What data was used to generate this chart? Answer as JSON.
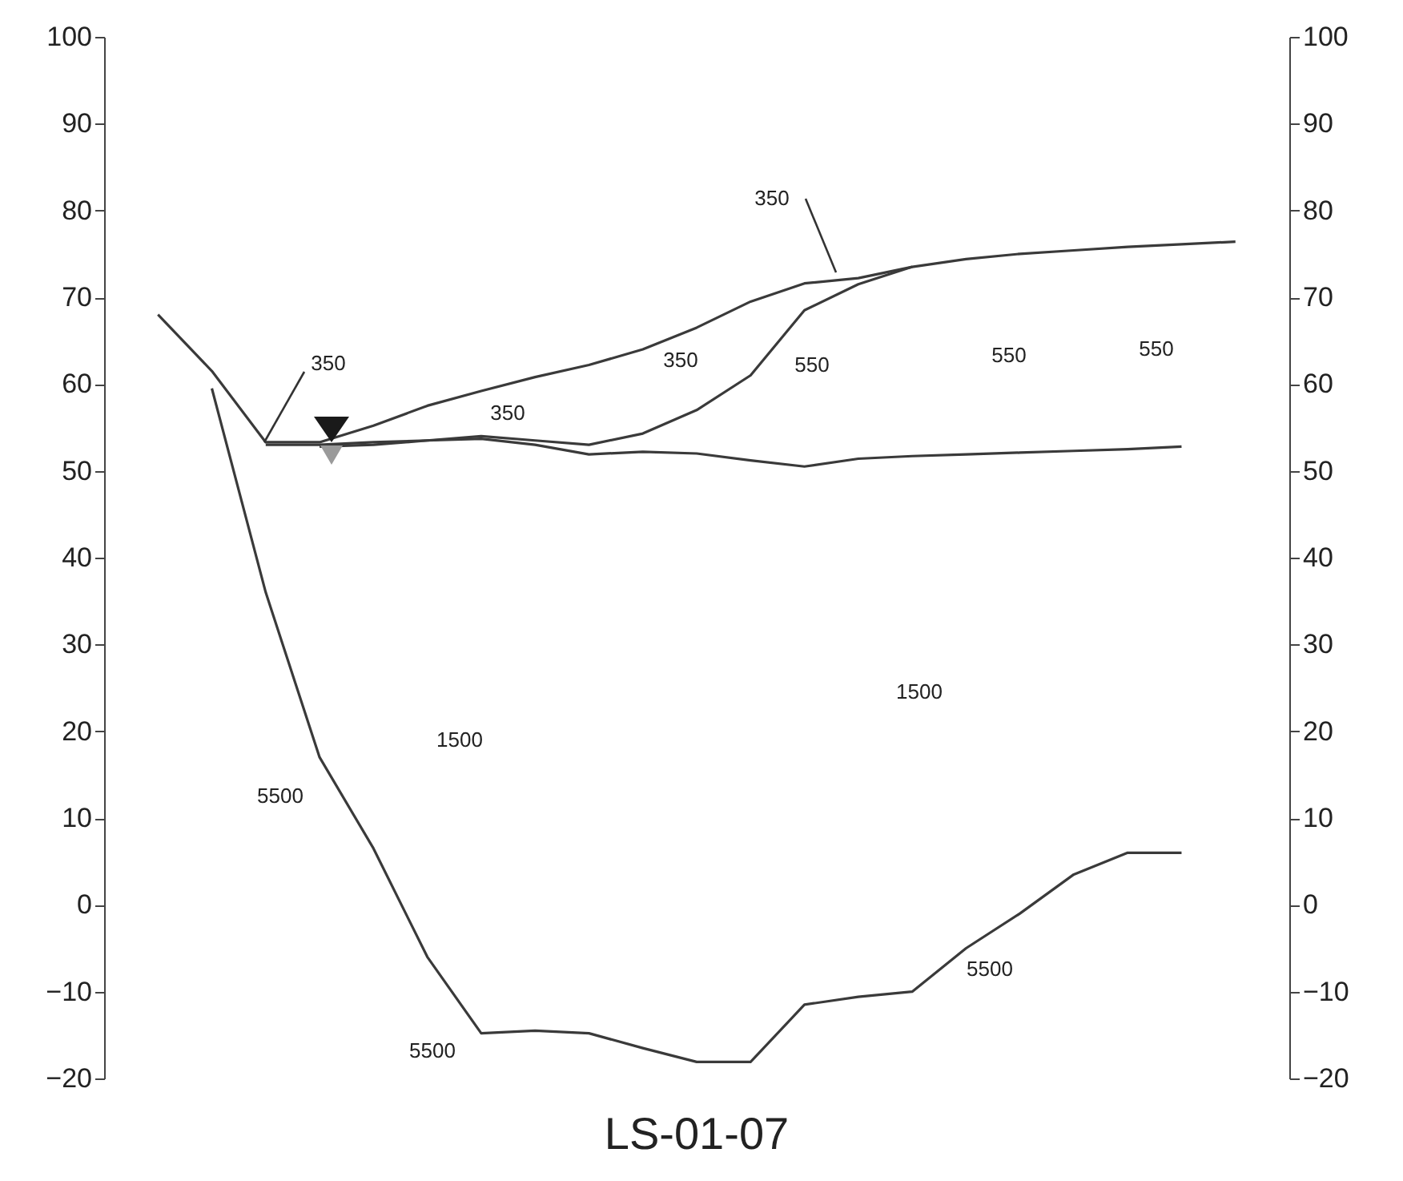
{
  "chart_data": {
    "type": "line",
    "title": "LS-01-07",
    "categories": [
      null,
      null,
      null,
      null,
      null,
      null,
      null,
      null,
      null,
      null,
      null,
      null,
      null,
      null,
      null,
      null,
      null,
      null,
      null,
      null,
      null
    ],
    "series": [
      {
        "color": "#3a3a3a",
        "values": [
          68,
          61.5,
          53.3,
          53.3,
          55.2,
          57.5,
          59.2,
          60.8,
          62.2,
          64,
          66.5,
          69.5,
          71.6,
          72.2,
          73.5,
          74.4,
          75,
          75.4,
          75.8,
          76.1,
          76.4
        ]
      },
      {
        "color": "#3a3a3a",
        "values": [
          null,
          null,
          null,
          52.8,
          53,
          53.5,
          54,
          53.5,
          53,
          54.3,
          57,
          61,
          68.5,
          71.5,
          73.5,
          null,
          null,
          null,
          null,
          null,
          null
        ]
      },
      {
        "color": "#3a3a3a",
        "values": [
          null,
          null,
          53,
          53,
          53.3,
          53.5,
          53.7,
          53,
          51.9,
          52.2,
          52,
          51.2,
          50.5,
          51.4,
          51.7,
          51.9,
          52.1,
          52.3,
          52.5,
          52.8,
          null
        ]
      },
      {
        "color": "#3a3a3a",
        "values": [
          null,
          59.5,
          36,
          17,
          6.5,
          -6,
          -14.8,
          -14.5,
          -14.8,
          -16.5,
          -18.1,
          -18.1,
          -11.5,
          -10.6,
          -10,
          -5,
          -1,
          3.5,
          6,
          6,
          null
        ]
      }
    ],
    "ylim": [
      -20,
      100
    ],
    "yticks": [
      -20,
      -10,
      0,
      10,
      20,
      30,
      40,
      50,
      60,
      70,
      80,
      90,
      100
    ],
    "y2lim": [
      -20,
      100
    ],
    "y2ticks": [
      -20,
      -10,
      0,
      10,
      20,
      30,
      40,
      50,
      60,
      70,
      80,
      90,
      100
    ],
    "tick_labels": "y",
    "grid": false,
    "legend": false,
    "marker": "none",
    "line_style": "solid",
    "annotations": [
      "350",
      "350",
      "350",
      "350",
      "550",
      "550",
      "550",
      "1500",
      "1500",
      "5500",
      "5500",
      "5500"
    ]
  }
}
